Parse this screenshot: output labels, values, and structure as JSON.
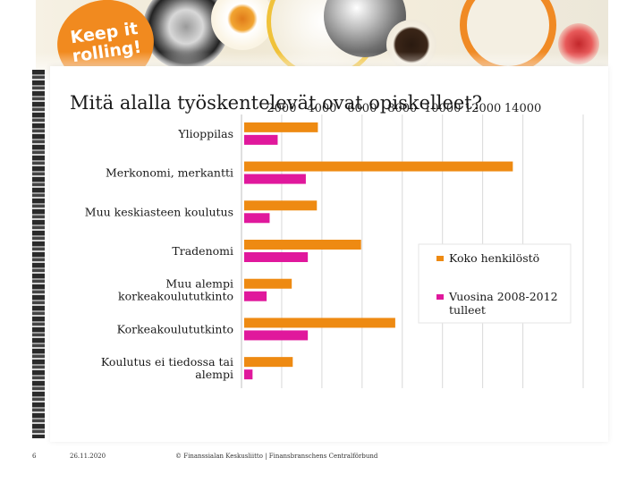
{
  "slide": {
    "title": "Mitä alalla työskentelevät ovat opiskelleet?",
    "logo_line1": "Keep it",
    "logo_line2": "rolling!"
  },
  "footer": {
    "page_number": "6",
    "date": "26.11.2020",
    "copyright": "© Finanssialan Keskusliitto | Finansbranschens Centralförbund"
  },
  "colors": {
    "koko": "#ee8a12",
    "vuosina": "#e0189c",
    "grid": "#d9d9d9"
  },
  "chart_data": {
    "type": "bar",
    "orientation": "horizontal",
    "title": "Mitä alalla työskentelevät ovat opiskelleet?",
    "x_ticks": [
      "2000",
      "4000",
      "6000",
      "8000",
      "10000",
      "12000",
      "14000"
    ],
    "xlim": [
      0,
      17000
    ],
    "categories": [
      [
        "Ylioppilas"
      ],
      [
        "Merkonomi, merkantti"
      ],
      [
        "Muu keskiasteen koulutus"
      ],
      [
        "Tradenomi"
      ],
      [
        "Muu alempi",
        "korkeakoulututkinto"
      ],
      [
        "Korkeakoulututkinto"
      ],
      [
        "Koulutus ei tiedossa tai",
        "alempi"
      ]
    ],
    "series": [
      {
        "name": "Koko henkilöstö",
        "values": [
          3800,
          13500,
          3750,
          5950,
          2500,
          7650,
          2550
        ]
      },
      {
        "name": "Vuosina 2008-2012 tulleet",
        "values": [
          1800,
          3200,
          1400,
          3300,
          1250,
          3300,
          550
        ]
      }
    ],
    "legend": [
      [
        "Koko henkilöstö"
      ],
      [
        "Vuosina 2008-2012",
        "tulleet"
      ]
    ],
    "legend_position": "right"
  }
}
